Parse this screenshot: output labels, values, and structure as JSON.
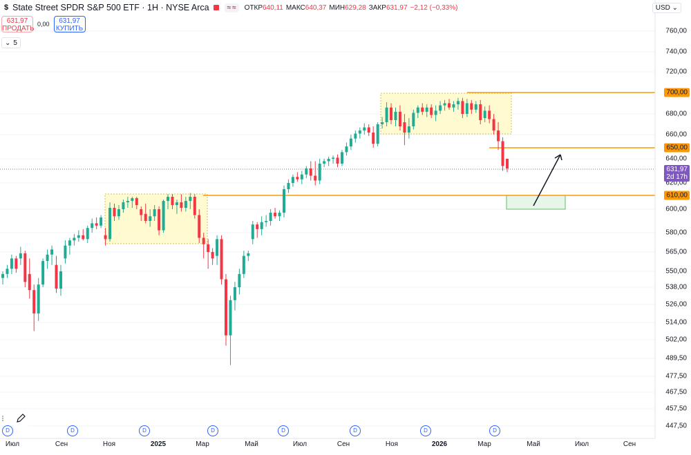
{
  "header": {
    "currency_symbol": "$",
    "title": "State Street SPDR S&P 500 ETF · 1H · NYSE Arca",
    "compare_symbols": [
      "≈",
      "≈"
    ],
    "ohlc": [
      {
        "label": "ОТКР",
        "value": "640,11"
      },
      {
        "label": "МАКС",
        "value": "640,37"
      },
      {
        "label": "МИН",
        "value": "629,28"
      },
      {
        "label": "ЗАКР",
        "value": "631,97"
      },
      {
        "label": "",
        "value": "−2,12 (−0,33%)"
      }
    ]
  },
  "trade": {
    "sell_price": "631,97",
    "sell_label": "ПРОДАТЬ",
    "spread": "0,00",
    "buy_price": "631,97",
    "buy_label": "КУПИТЬ"
  },
  "indicators_toggle": {
    "chevron": "⌄",
    "count": "5"
  },
  "currency_selector": "USD ⌄",
  "colors": {
    "up": "#22ab94",
    "down": "#f23645",
    "level": "#ff9800",
    "box_fill": "#fff9c4",
    "target_fill": "#e8f5e9",
    "current": "#7e57c2",
    "event": "#2962ff"
  },
  "chart_data": {
    "type": "candlestick",
    "price_scale_labels": [
      "760,00",
      "740,00",
      "720,00",
      "700,00",
      "680,00",
      "660,00",
      "650,00",
      "640,00",
      "631,97",
      "620,00",
      "610,00",
      "600,00",
      "580,00",
      "565,00",
      "550,00",
      "538,00",
      "526,00",
      "514,00",
      "502,00",
      "489,50",
      "477,50",
      "467,50",
      "457,50",
      "447,50"
    ],
    "axis_ticks": [
      {
        "label": "760,00",
        "value": 760
      },
      {
        "label": "740,00",
        "value": 740
      },
      {
        "label": "720,00",
        "value": 720
      },
      {
        "label": "680,00",
        "value": 680
      },
      {
        "label": "660,00",
        "value": 660
      },
      {
        "label": "640,00",
        "value": 640
      },
      {
        "label": "620,00",
        "value": 620
      },
      {
        "label": "600,00",
        "value": 600
      },
      {
        "label": "580,00",
        "value": 580
      },
      {
        "label": "565,00",
        "value": 565
      },
      {
        "label": "550,00",
        "value": 550
      },
      {
        "label": "538,00",
        "value": 538
      },
      {
        "label": "526,00",
        "value": 526
      },
      {
        "label": "514,00",
        "value": 514
      },
      {
        "label": "502,00",
        "value": 502
      },
      {
        "label": "489,50",
        "value": 489.5
      },
      {
        "label": "477,50",
        "value": 477.5
      },
      {
        "label": "467,50",
        "value": 467.5
      },
      {
        "label": "457,50",
        "value": 457.5
      },
      {
        "label": "447,50",
        "value": 447.5
      }
    ],
    "x_labels": [
      {
        "label": "Июл",
        "bold": false
      },
      {
        "label": "Сен",
        "bold": false
      },
      {
        "label": "Ноя",
        "bold": false
      },
      {
        "label": "2025",
        "bold": true
      },
      {
        "label": "Мар",
        "bold": false
      },
      {
        "label": "Май",
        "bold": false
      },
      {
        "label": "Июл",
        "bold": false
      },
      {
        "label": "Сен",
        "bold": false
      },
      {
        "label": "Ноя",
        "bold": false
      },
      {
        "label": "2026",
        "bold": true
      },
      {
        "label": "Мар",
        "bold": false
      },
      {
        "label": "Май",
        "bold": false
      },
      {
        "label": "Июл",
        "bold": false
      },
      {
        "label": "Сен",
        "bold": false
      }
    ],
    "levels": [
      {
        "value": 700,
        "label": "700,00"
      },
      {
        "value": 650,
        "label": "650,00"
      },
      {
        "value": 610,
        "label": "610,00"
      }
    ],
    "current_price": {
      "value": 631.97,
      "label": "631,97",
      "countdown": "2d 17h"
    },
    "event_marker": "D",
    "candles": [
      {
        "o": 545,
        "h": 550,
        "l": 540,
        "c": 548
      },
      {
        "o": 548,
        "h": 555,
        "l": 545,
        "c": 552
      },
      {
        "o": 552,
        "h": 563,
        "l": 548,
        "c": 560
      },
      {
        "o": 560,
        "h": 562,
        "l": 549,
        "c": 552
      },
      {
        "o": 560,
        "h": 569,
        "l": 555,
        "c": 564
      },
      {
        "o": 564,
        "h": 566,
        "l": 538,
        "c": 542
      },
      {
        "o": 548,
        "h": 560,
        "l": 530,
        "c": 536
      },
      {
        "o": 536,
        "h": 540,
        "l": 508,
        "c": 520
      },
      {
        "o": 520,
        "h": 545,
        "l": 515,
        "c": 540
      },
      {
        "o": 540,
        "h": 560,
        "l": 538,
        "c": 558
      },
      {
        "o": 558,
        "h": 567,
        "l": 552,
        "c": 563
      },
      {
        "o": 563,
        "h": 570,
        "l": 555,
        "c": 567
      },
      {
        "o": 555,
        "h": 562,
        "l": 534,
        "c": 537
      },
      {
        "o": 537,
        "h": 555,
        "l": 532,
        "c": 550
      },
      {
        "o": 560,
        "h": 574,
        "l": 556,
        "c": 570
      },
      {
        "o": 570,
        "h": 576,
        "l": 563,
        "c": 574
      },
      {
        "o": 574,
        "h": 579,
        "l": 570,
        "c": 576
      },
      {
        "o": 576,
        "h": 582,
        "l": 573,
        "c": 578
      },
      {
        "o": 578,
        "h": 583,
        "l": 574,
        "c": 575
      },
      {
        "o": 575,
        "h": 586,
        "l": 572,
        "c": 584
      },
      {
        "o": 584,
        "h": 592,
        "l": 580,
        "c": 588
      },
      {
        "o": 588,
        "h": 593,
        "l": 583,
        "c": 586
      },
      {
        "o": 586,
        "h": 595,
        "l": 584,
        "c": 593
      },
      {
        "o": 578,
        "h": 584,
        "l": 570,
        "c": 575
      },
      {
        "o": 575,
        "h": 605,
        "l": 573,
        "c": 601
      },
      {
        "o": 601,
        "h": 604,
        "l": 590,
        "c": 594
      },
      {
        "o": 594,
        "h": 603,
        "l": 591,
        "c": 600
      },
      {
        "o": 600,
        "h": 607,
        "l": 597,
        "c": 605
      },
      {
        "o": 605,
        "h": 609,
        "l": 601,
        "c": 606
      },
      {
        "o": 606,
        "h": 609,
        "l": 601,
        "c": 608
      },
      {
        "o": 608,
        "h": 609,
        "l": 600,
        "c": 603
      },
      {
        "o": 600,
        "h": 602,
        "l": 590,
        "c": 595
      },
      {
        "o": 596,
        "h": 604,
        "l": 588,
        "c": 590
      },
      {
        "o": 590,
        "h": 600,
        "l": 585,
        "c": 594
      },
      {
        "o": 594,
        "h": 603,
        "l": 590,
        "c": 600
      },
      {
        "o": 600,
        "h": 602,
        "l": 578,
        "c": 582
      },
      {
        "o": 582,
        "h": 607,
        "l": 580,
        "c": 606
      },
      {
        "o": 606,
        "h": 611,
        "l": 600,
        "c": 609
      },
      {
        "o": 609,
        "h": 611,
        "l": 600,
        "c": 603
      },
      {
        "o": 603,
        "h": 607,
        "l": 596,
        "c": 605
      },
      {
        "o": 605,
        "h": 611,
        "l": 598,
        "c": 601
      },
      {
        "o": 601,
        "h": 609,
        "l": 598,
        "c": 606
      },
      {
        "o": 606,
        "h": 612,
        "l": 600,
        "c": 609
      },
      {
        "o": 609,
        "h": 611,
        "l": 592,
        "c": 595
      },
      {
        "o": 595,
        "h": 600,
        "l": 572,
        "c": 576
      },
      {
        "o": 576,
        "h": 580,
        "l": 560,
        "c": 571
      },
      {
        "o": 571,
        "h": 575,
        "l": 552,
        "c": 565
      },
      {
        "o": 565,
        "h": 568,
        "l": 555,
        "c": 560
      },
      {
        "o": 562,
        "h": 578,
        "l": 555,
        "c": 575
      },
      {
        "o": 575,
        "h": 578,
        "l": 540,
        "c": 544
      },
      {
        "o": 544,
        "h": 548,
        "l": 498,
        "c": 505
      },
      {
        "o": 505,
        "h": 532,
        "l": 485,
        "c": 529
      },
      {
        "o": 529,
        "h": 542,
        "l": 522,
        "c": 538
      },
      {
        "o": 538,
        "h": 552,
        "l": 533,
        "c": 548
      },
      {
        "o": 548,
        "h": 566,
        "l": 545,
        "c": 562
      },
      {
        "o": 562,
        "h": 566,
        "l": 558,
        "c": 564
      },
      {
        "o": 575,
        "h": 590,
        "l": 571,
        "c": 587
      },
      {
        "o": 587,
        "h": 589,
        "l": 576,
        "c": 583
      },
      {
        "o": 583,
        "h": 594,
        "l": 578,
        "c": 589
      },
      {
        "o": 589,
        "h": 595,
        "l": 585,
        "c": 590
      },
      {
        "o": 590,
        "h": 600,
        "l": 586,
        "c": 597
      },
      {
        "o": 597,
        "h": 601,
        "l": 592,
        "c": 594
      },
      {
        "o": 594,
        "h": 599,
        "l": 590,
        "c": 597
      },
      {
        "o": 597,
        "h": 618,
        "l": 593,
        "c": 615
      },
      {
        "o": 615,
        "h": 623,
        "l": 612,
        "c": 620
      },
      {
        "o": 620,
        "h": 627,
        "l": 617,
        "c": 625
      },
      {
        "o": 625,
        "h": 629,
        "l": 621,
        "c": 623
      },
      {
        "o": 623,
        "h": 630,
        "l": 619,
        "c": 627
      },
      {
        "o": 627,
        "h": 634,
        "l": 624,
        "c": 632
      },
      {
        "o": 632,
        "h": 638,
        "l": 622,
        "c": 626
      },
      {
        "o": 626,
        "h": 638,
        "l": 618,
        "c": 622
      },
      {
        "o": 622,
        "h": 640,
        "l": 619,
        "c": 636
      },
      {
        "o": 636,
        "h": 640,
        "l": 633,
        "c": 638
      },
      {
        "o": 638,
        "h": 642,
        "l": 634,
        "c": 640
      },
      {
        "o": 640,
        "h": 643,
        "l": 636,
        "c": 641
      },
      {
        "o": 641,
        "h": 644,
        "l": 633,
        "c": 636
      },
      {
        "o": 636,
        "h": 648,
        "l": 634,
        "c": 646
      },
      {
        "o": 646,
        "h": 654,
        "l": 643,
        "c": 651
      },
      {
        "o": 651,
        "h": 660,
        "l": 648,
        "c": 657
      },
      {
        "o": 657,
        "h": 664,
        "l": 654,
        "c": 661
      },
      {
        "o": 661,
        "h": 667,
        "l": 657,
        "c": 664
      },
      {
        "o": 664,
        "h": 671,
        "l": 660,
        "c": 667
      },
      {
        "o": 667,
        "h": 670,
        "l": 659,
        "c": 662
      },
      {
        "o": 662,
        "h": 668,
        "l": 650,
        "c": 653
      },
      {
        "o": 653,
        "h": 672,
        "l": 651,
        "c": 670
      },
      {
        "o": 670,
        "h": 677,
        "l": 666,
        "c": 672
      },
      {
        "o": 672,
        "h": 691,
        "l": 668,
        "c": 686
      },
      {
        "o": 686,
        "h": 690,
        "l": 670,
        "c": 674
      },
      {
        "o": 674,
        "h": 686,
        "l": 668,
        "c": 682
      },
      {
        "o": 682,
        "h": 688,
        "l": 664,
        "c": 668
      },
      {
        "o": 672,
        "h": 680,
        "l": 652,
        "c": 662
      },
      {
        "o": 662,
        "h": 676,
        "l": 657,
        "c": 668
      },
      {
        "o": 668,
        "h": 684,
        "l": 665,
        "c": 681
      },
      {
        "o": 681,
        "h": 688,
        "l": 676,
        "c": 686
      },
      {
        "o": 686,
        "h": 690,
        "l": 679,
        "c": 682
      },
      {
        "o": 682,
        "h": 689,
        "l": 677,
        "c": 686
      },
      {
        "o": 686,
        "h": 689,
        "l": 676,
        "c": 679
      },
      {
        "o": 679,
        "h": 688,
        "l": 673,
        "c": 683
      },
      {
        "o": 683,
        "h": 692,
        "l": 680,
        "c": 688
      },
      {
        "o": 688,
        "h": 693,
        "l": 683,
        "c": 690
      },
      {
        "o": 690,
        "h": 694,
        "l": 684,
        "c": 686
      },
      {
        "o": 686,
        "h": 692,
        "l": 682,
        "c": 689
      },
      {
        "o": 689,
        "h": 695,
        "l": 684,
        "c": 692
      },
      {
        "o": 692,
        "h": 695,
        "l": 676,
        "c": 680
      },
      {
        "o": 680,
        "h": 694,
        "l": 677,
        "c": 690
      },
      {
        "o": 690,
        "h": 693,
        "l": 680,
        "c": 684
      },
      {
        "o": 684,
        "h": 692,
        "l": 681,
        "c": 689
      },
      {
        "o": 689,
        "h": 693,
        "l": 670,
        "c": 674
      },
      {
        "o": 676,
        "h": 687,
        "l": 672,
        "c": 683
      },
      {
        "o": 683,
        "h": 688,
        "l": 671,
        "c": 675
      },
      {
        "o": 675,
        "h": 680,
        "l": 660,
        "c": 664
      },
      {
        "o": 664,
        "h": 672,
        "l": 648,
        "c": 655
      },
      {
        "o": 655,
        "h": 658,
        "l": 630,
        "c": 634
      },
      {
        "o": 640,
        "h": 640,
        "l": 629,
        "c": 632
      }
    ]
  }
}
